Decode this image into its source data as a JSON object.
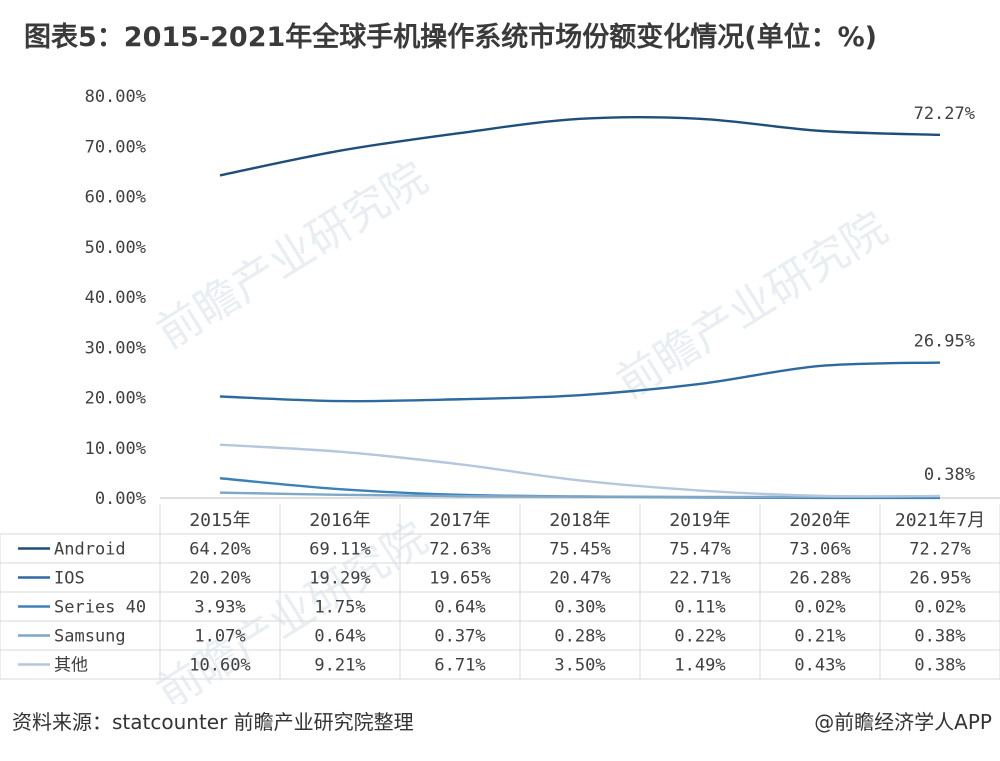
{
  "title": "图表5：2015-2021年全球手机操作系统市场份额变化情况(单位：%)",
  "source": "资料来源：statcounter 前瞻产业研究院整理",
  "credit": "@前瞻经济学人APP",
  "watermark": "前瞻产业研究院",
  "colors": {
    "Android": "#1f4e79",
    "IOS": "#2d6a9f",
    "Series 40": "#3b82b8",
    "Samsung": "#7fa7c9",
    "其他": "#b4c7dc",
    "grid": "#d9d9d9",
    "text": "#404040"
  },
  "chart_data": {
    "type": "line",
    "categories": [
      "2015年",
      "2016年",
      "2017年",
      "2018年",
      "2019年",
      "2020年",
      "2021年7月"
    ],
    "y_ticks": [
      "0.00%",
      "10.00%",
      "20.00%",
      "30.00%",
      "40.00%",
      "50.00%",
      "60.00%",
      "70.00%",
      "80.00%"
    ],
    "ylim": [
      0,
      80
    ],
    "grid": false,
    "legend": "data-table",
    "series": [
      {
        "name": "Android",
        "values": [
          64.2,
          69.11,
          72.63,
          75.45,
          75.47,
          73.06,
          72.27
        ],
        "labels": [
          "64.20%",
          "69.11%",
          "72.63%",
          "75.45%",
          "75.47%",
          "73.06%",
          "72.27%"
        ],
        "end_label": "72.27%"
      },
      {
        "name": "IOS",
        "values": [
          20.2,
          19.29,
          19.65,
          20.47,
          22.71,
          26.28,
          26.95
        ],
        "labels": [
          "20.20%",
          "19.29%",
          "19.65%",
          "20.47%",
          "22.71%",
          "26.28%",
          "26.95%"
        ],
        "end_label": "26.95%"
      },
      {
        "name": "Series 40",
        "values": [
          3.93,
          1.75,
          0.64,
          0.3,
          0.11,
          0.02,
          0.02
        ],
        "labels": [
          "3.93%",
          "1.75%",
          "0.64%",
          "0.30%",
          "0.11%",
          "0.02%",
          "0.02%"
        ],
        "end_label": ""
      },
      {
        "name": "Samsung",
        "values": [
          1.07,
          0.64,
          0.37,
          0.28,
          0.22,
          0.21,
          0.38
        ],
        "labels": [
          "1.07%",
          "0.64%",
          "0.37%",
          "0.28%",
          "0.22%",
          "0.21%",
          "0.38%"
        ],
        "end_label": "0.38%"
      },
      {
        "name": "其他",
        "values": [
          10.6,
          9.21,
          6.71,
          3.5,
          1.49,
          0.43,
          0.38
        ],
        "labels": [
          "10.60%",
          "9.21%",
          "6.71%",
          "3.50%",
          "1.49%",
          "0.43%",
          "0.38%"
        ],
        "end_label": ""
      }
    ]
  }
}
